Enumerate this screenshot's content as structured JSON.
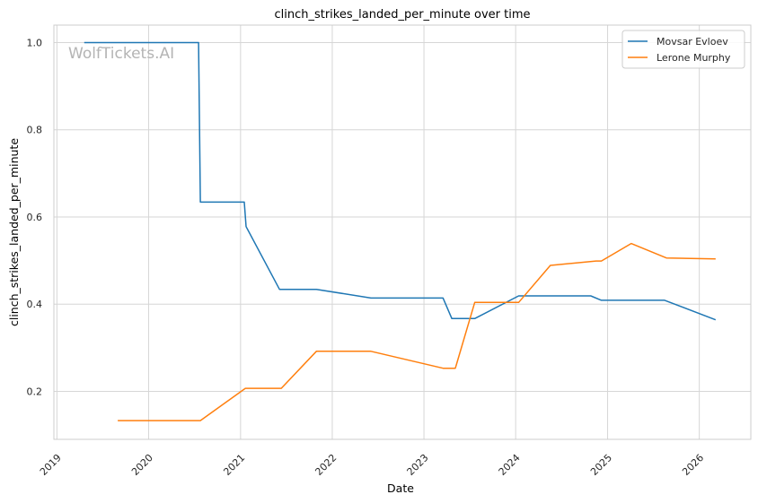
{
  "chart_data": {
    "type": "line",
    "title": "clinch_strikes_landed_per_minute over time",
    "xlabel": "Date",
    "ylabel": "clinch_strikes_landed_per_minute",
    "watermark": "WolfTickets.AI",
    "x_ticks": [
      "2019",
      "2020",
      "2021",
      "2022",
      "2023",
      "2024",
      "2025",
      "2026"
    ],
    "y_ticks": [
      "0.2",
      "0.4",
      "0.6",
      "0.8",
      "1.0"
    ],
    "xlim": [
      "2018-12-20",
      "2026-07-25"
    ],
    "ylim": [
      0.09,
      1.04
    ],
    "grid": true,
    "legend_position": "top-right",
    "series": [
      {
        "name": "Movsar Evloev",
        "color": "#1f77b4",
        "points": [
          [
            "2019-04-20",
            1.0
          ],
          [
            "2020-07-18",
            1.0
          ],
          [
            "2020-07-25",
            0.634
          ],
          [
            "2021-01-16",
            0.634
          ],
          [
            "2021-01-23",
            0.578
          ],
          [
            "2021-06-05",
            0.434
          ],
          [
            "2021-10-30",
            0.434
          ],
          [
            "2022-06-04",
            0.414
          ],
          [
            "2023-03-18",
            0.414
          ],
          [
            "2023-04-22",
            0.367
          ],
          [
            "2023-07-22",
            0.367
          ],
          [
            "2024-01-13",
            0.419
          ],
          [
            "2024-10-26",
            0.419
          ],
          [
            "2024-12-07",
            0.409
          ],
          [
            "2025-08-16",
            0.409
          ],
          [
            "2026-03-07",
            0.364
          ]
        ]
      },
      {
        "name": "Lerone Murphy",
        "color": "#ff7f0e",
        "points": [
          [
            "2019-08-31",
            0.133
          ],
          [
            "2020-07-25",
            0.133
          ],
          [
            "2021-01-20",
            0.207
          ],
          [
            "2021-06-12",
            0.207
          ],
          [
            "2021-10-30",
            0.292
          ],
          [
            "2022-06-04",
            0.292
          ],
          [
            "2023-03-18",
            0.253
          ],
          [
            "2023-05-06",
            0.253
          ],
          [
            "2023-07-22",
            0.404
          ],
          [
            "2024-01-13",
            0.404
          ],
          [
            "2024-05-18",
            0.489
          ],
          [
            "2024-11-16",
            0.499
          ],
          [
            "2024-12-07",
            0.499
          ],
          [
            "2025-04-05",
            0.539
          ],
          [
            "2025-08-23",
            0.506
          ],
          [
            "2026-03-07",
            0.504
          ]
        ]
      }
    ]
  }
}
